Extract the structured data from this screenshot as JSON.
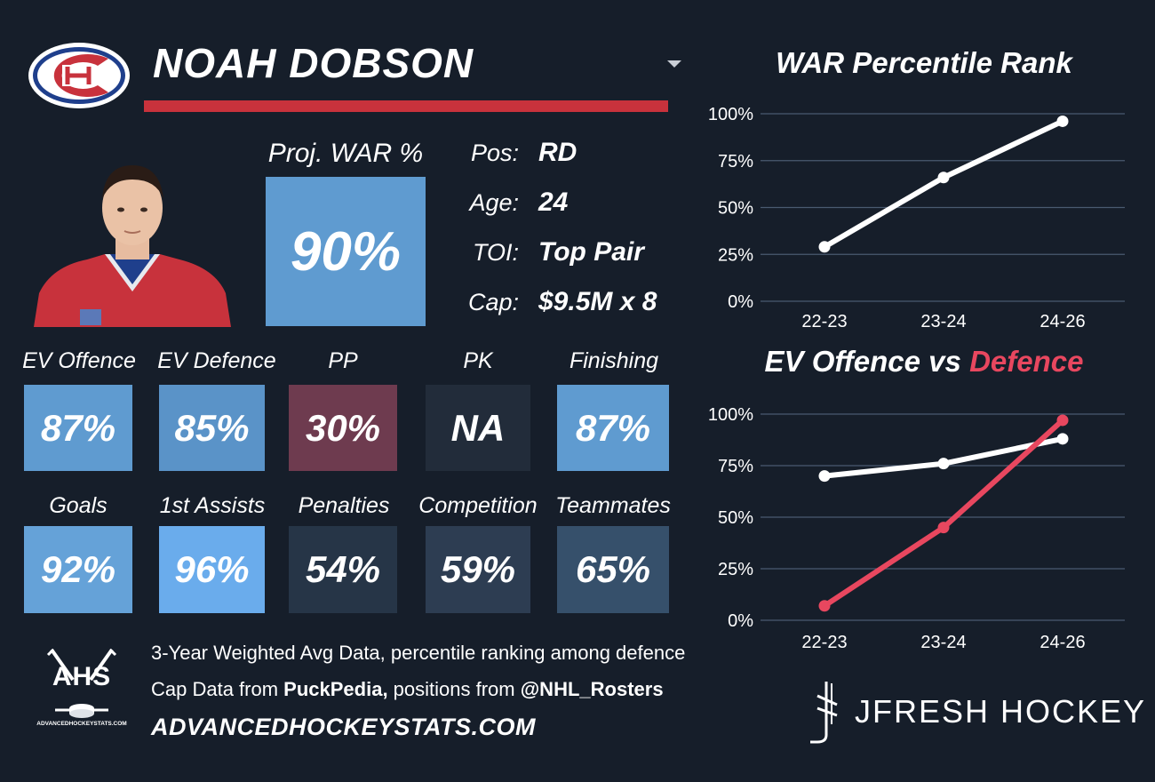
{
  "player": {
    "name": "NOAH DOBSON"
  },
  "proj_war": {
    "label": "Proj. WAR %",
    "value": "90%"
  },
  "info": [
    {
      "key": "Pos:",
      "value": "RD"
    },
    {
      "key": "Age:",
      "value": "24"
    },
    {
      "key": "TOI:",
      "value": "Top Pair"
    },
    {
      "key": "Cap:",
      "value": "$9.5M x 8"
    }
  ],
  "tiles_row1": [
    {
      "label": "EV Offence",
      "value": "87%",
      "color": "#5f9bd0"
    },
    {
      "label": "EV Defence",
      "value": "85%",
      "color": "#5a93c8"
    },
    {
      "label": "PP",
      "value": "30%",
      "color": "#6e3b4f"
    },
    {
      "label": "PK",
      "value": "NA",
      "color": "#222c3a"
    },
    {
      "label": "Finishing",
      "value": "87%",
      "color": "#5f9bd0"
    }
  ],
  "tiles_row2": [
    {
      "label": "Goals",
      "value": "92%",
      "color": "#65a2d8"
    },
    {
      "label": "1st Assists",
      "value": "96%",
      "color": "#6aacec"
    },
    {
      "label": "Penalties",
      "value": "54%",
      "color": "#263547"
    },
    {
      "label": "Competition",
      "value": "59%",
      "color": "#2d3d52"
    },
    {
      "label": "Teammates",
      "value": "65%",
      "color": "#36506b"
    }
  ],
  "footer": {
    "line1": "3-Year Weighted Avg Data, percentile ranking among defence",
    "line2_a": "Cap Data from ",
    "line2_b": "PuckPedia,",
    "line2_c": " positions from ",
    "line2_d": "@NHL_Rosters",
    "site": "ADVANCEDHOCKEYSTATS.COM",
    "ahs_logo": "AHS",
    "ahs_sub": "ADVANCEDHOCKEYSTATS.COM",
    "brand": "JFRESH HOCKEY"
  },
  "colors": {
    "accent_red": "#c8323c",
    "line_white": "#ffffff",
    "line_red": "#e8475f",
    "grid": "#4a5a70"
  },
  "chart_data": [
    {
      "type": "line",
      "title": "WAR Percentile Rank",
      "categories": [
        "22-23",
        "23-24",
        "24-26"
      ],
      "series": [
        {
          "values": [
            29,
            66,
            96
          ],
          "color": "#ffffff"
        }
      ],
      "ylim": [
        0,
        100
      ],
      "yticks": [
        "0%",
        "25%",
        "50%",
        "75%",
        "100%"
      ],
      "grid": true
    },
    {
      "type": "line",
      "title_a": "EV Offence vs ",
      "title_b": "Defence",
      "categories": [
        "22-23",
        "23-24",
        "24-26"
      ],
      "series": [
        {
          "values": [
            70,
            76,
            88
          ],
          "color": "#ffffff"
        },
        {
          "values": [
            7,
            45,
            97
          ],
          "color": "#e8475f"
        }
      ],
      "ylim": [
        0,
        100
      ],
      "yticks": [
        "0%",
        "25%",
        "50%",
        "75%",
        "100%"
      ],
      "grid": true
    }
  ]
}
